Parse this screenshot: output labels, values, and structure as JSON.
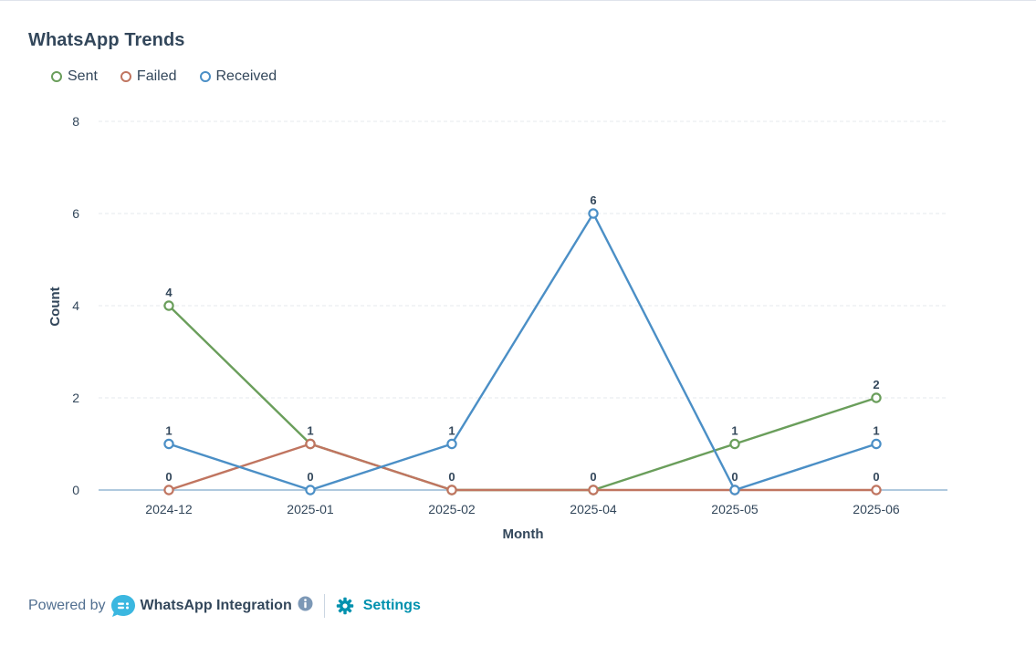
{
  "chart_data": {
    "type": "line",
    "title": "WhatsApp Trends",
    "xlabel": "Month",
    "ylabel": "Count",
    "categories": [
      "2024-12",
      "2025-01",
      "2025-02",
      "2025-04",
      "2025-05",
      "2025-06"
    ],
    "ylim": [
      0,
      8
    ],
    "yticks": [
      0,
      2,
      4,
      6,
      8
    ],
    "grid": true,
    "legend_position": "top-left",
    "series": [
      {
        "name": "Sent",
        "color": "#6a9e5b",
        "values": [
          4,
          1,
          0,
          0,
          1,
          2
        ]
      },
      {
        "name": "Failed",
        "color": "#c07560",
        "values": [
          0,
          1,
          0,
          0,
          0,
          0
        ]
      },
      {
        "name": "Received",
        "color": "#4b8fc6",
        "values": [
          1,
          0,
          1,
          6,
          0,
          1
        ]
      }
    ],
    "data_labels": [
      {
        "x": "2024-12",
        "value": 4,
        "text": "4"
      },
      {
        "x": "2024-12",
        "value": 1,
        "text": "1"
      },
      {
        "x": "2024-12",
        "value": 0,
        "text": "0"
      },
      {
        "x": "2025-01",
        "value": 1,
        "text": "1"
      },
      {
        "x": "2025-01",
        "value": 0,
        "text": "0"
      },
      {
        "x": "2025-02",
        "value": 1,
        "text": "1"
      },
      {
        "x": "2025-02",
        "value": 0,
        "text": "0"
      },
      {
        "x": "2025-04",
        "value": 6,
        "text": "6"
      },
      {
        "x": "2025-04",
        "value": 0,
        "text": "0"
      },
      {
        "x": "2025-05",
        "value": 1,
        "text": "1"
      },
      {
        "x": "2025-05",
        "value": 0,
        "text": "0"
      },
      {
        "x": "2025-06",
        "value": 2,
        "text": "2"
      },
      {
        "x": "2025-06",
        "value": 1,
        "text": "1"
      },
      {
        "x": "2025-06",
        "value": 0,
        "text": "0"
      }
    ]
  },
  "footer": {
    "powered_by": "Powered by",
    "integration_name": "WhatsApp Integration",
    "settings_label": "Settings",
    "logo_icon": "chat-bubble-logo-icon",
    "info_icon": "info-icon",
    "settings_icon": "gear-icon",
    "link_color": "#0091ae"
  }
}
